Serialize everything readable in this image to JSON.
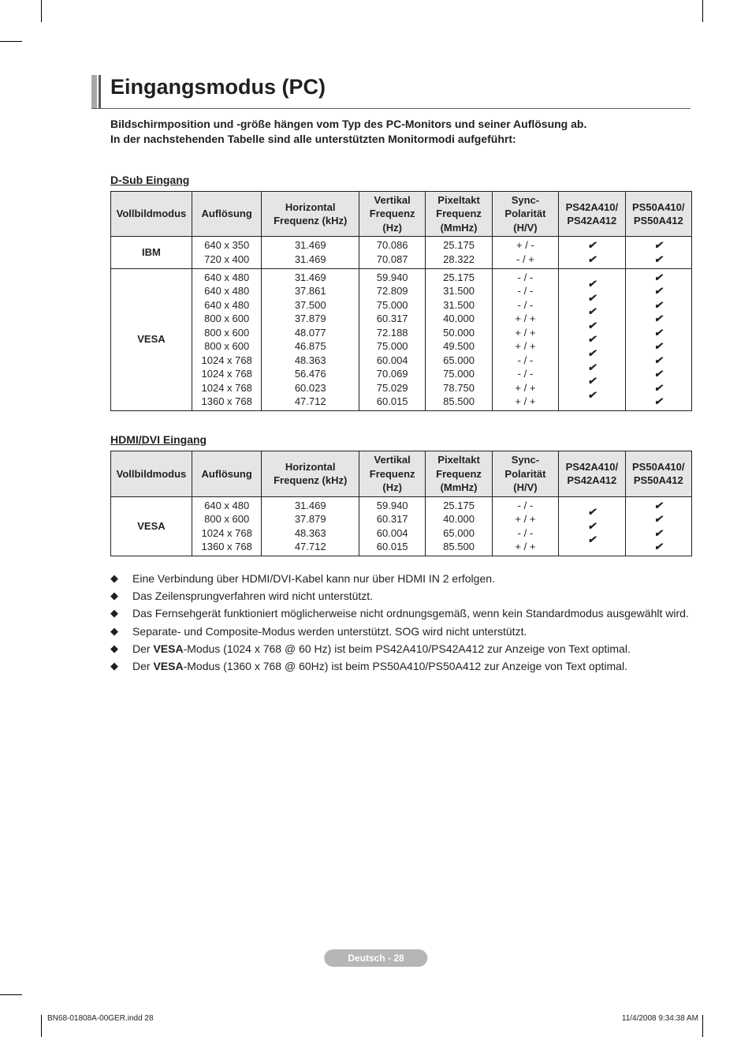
{
  "title": "Eingangsmodus (PC)",
  "intro": {
    "line1": "Bildschirmposition und -größe hängen vom Typ des PC-Monitors und seiner Auflösung ab.",
    "line2": "In der nachstehenden Tabelle sind alle unterstützten Monitormodi aufgeführt:"
  },
  "checkmark": "✔",
  "sections": {
    "dsub": {
      "label": "D-Sub Eingang",
      "headers": {
        "mode": "Vollbildmodus",
        "res": "Auflösung",
        "hf": "Horizontal Frequenz (kHz)",
        "vf": "Vertikal Frequenz (Hz)",
        "pf": "Pixeltakt Frequenz (MmHz)",
        "sp": "Sync-Polarität (H/V)",
        "m1a": "PS42A410/",
        "m1b": "PS42A412",
        "m2a": "PS50A410/",
        "m2b": "PS50A412"
      },
      "groups": [
        {
          "mode": "IBM",
          "rows": [
            {
              "res": "640 x 350",
              "hf": "31.469",
              "vf": "70.086",
              "pf": "25.175",
              "sp": "+ / -",
              "m1": true,
              "m2": true
            },
            {
              "res": "720 x 400",
              "hf": "31.469",
              "vf": "70.087",
              "pf": "28.322",
              "sp": "- / +",
              "m1": true,
              "m2": true
            }
          ]
        },
        {
          "mode": "VESA",
          "rows": [
            {
              "res": "640 x 480",
              "hf": "31.469",
              "vf": "59.940",
              "pf": "25.175",
              "sp": "- / -",
              "m1": true,
              "m2": true
            },
            {
              "res": "640 x 480",
              "hf": "37.861",
              "vf": "72.809",
              "pf": "31.500",
              "sp": "- / -",
              "m1": true,
              "m2": true
            },
            {
              "res": "640 x 480",
              "hf": "37.500",
              "vf": "75.000",
              "pf": "31.500",
              "sp": "- / -",
              "m1": true,
              "m2": true
            },
            {
              "res": "800 x 600",
              "hf": "37.879",
              "vf": "60.317",
              "pf": "40.000",
              "sp": "+ / +",
              "m1": true,
              "m2": true
            },
            {
              "res": "800 x 600",
              "hf": "48.077",
              "vf": "72.188",
              "pf": "50.000",
              "sp": "+ / +",
              "m1": true,
              "m2": true
            },
            {
              "res": "800 x 600",
              "hf": "46.875",
              "vf": "75.000",
              "pf": "49.500",
              "sp": "+ / +",
              "m1": true,
              "m2": true
            },
            {
              "res": "1024 x 768",
              "hf": "48.363",
              "vf": "60.004",
              "pf": "65.000",
              "sp": "- / -",
              "m1": true,
              "m2": true
            },
            {
              "res": "1024 x 768",
              "hf": "56.476",
              "vf": "70.069",
              "pf": "75.000",
              "sp": "- / -",
              "m1": true,
              "m2": true
            },
            {
              "res": "1024 x 768",
              "hf": "60.023",
              "vf": "75.029",
              "pf": "78.750",
              "sp": "+ / +",
              "m1": true,
              "m2": true
            },
            {
              "res": "1360 x 768",
              "hf": "47.712",
              "vf": "60.015",
              "pf": "85.500",
              "sp": "+ / +",
              "m1": false,
              "m2": true
            }
          ]
        }
      ]
    },
    "hdmi": {
      "label": "HDMI/DVI Eingang",
      "headers": {
        "mode": "Vollbildmodus",
        "res": "Auflösung",
        "hf": "Horizontal Frequenz (kHz)",
        "vf": "Vertikal Frequenz (Hz)",
        "pf": "Pixeltakt Frequenz (MmHz)",
        "sp": "Sync-Polarität (H/V)",
        "m1a": "PS42A410/",
        "m1b": "PS42A412",
        "m2a": "PS50A410/",
        "m2b": "PS50A412"
      },
      "groups": [
        {
          "mode": "VESA",
          "rows": [
            {
              "res": "640 x 480",
              "hf": "31.469",
              "vf": "59.940",
              "pf": "25.175",
              "sp": "- / -",
              "m1": true,
              "m2": true
            },
            {
              "res": "800 x 600",
              "hf": "37.879",
              "vf": "60.317",
              "pf": "40.000",
              "sp": "+ / +",
              "m1": true,
              "m2": true
            },
            {
              "res": "1024 x 768",
              "hf": "48.363",
              "vf": "60.004",
              "pf": "65.000",
              "sp": "- / -",
              "m1": true,
              "m2": true
            },
            {
              "res": "1360 x 768",
              "hf": "47.712",
              "vf": "60.015",
              "pf": "85.500",
              "sp": "+ / +",
              "m1": false,
              "m2": true
            }
          ]
        }
      ]
    }
  },
  "bullets": [
    {
      "pre": "",
      "bold": "",
      "post": "Eine Verbindung über HDMI/DVI-Kabel kann nur über HDMI IN 2 erfolgen."
    },
    {
      "pre": "",
      "bold": "",
      "post": "Das Zeilensprungverfahren wird nicht unterstützt."
    },
    {
      "pre": "",
      "bold": "",
      "post": "Das Fernsehgerät funktioniert möglicherweise nicht ordnungsgemäß, wenn kein Standardmodus ausgewählt wird."
    },
    {
      "pre": "",
      "bold": "",
      "post": "Separate- und Composite-Modus werden unterstützt. SOG wird nicht unterstützt."
    },
    {
      "pre": "Der ",
      "bold": "VESA",
      "post": "-Modus (1024 x 768 @ 60 Hz) ist beim PS42A410/PS42A412 zur Anzeige von Text optimal."
    },
    {
      "pre": "Der ",
      "bold": "VESA",
      "post": "-Modus (1360 x 768 @ 60Hz) ist beim PS50A410/PS50A412 zur Anzeige von Text optimal."
    }
  ],
  "footer_pill": "Deutsch - 28",
  "indd": {
    "left": "BN68-01808A-00GER.indd   28",
    "right": "11/4/2008   9:34:38 AM"
  },
  "colors": {
    "text": "#231f20",
    "header_bg": "#e6e5e5",
    "pill_bg": "#b7b6b6",
    "rule_light": "#aaa7a7",
    "rule_dark": "#5a5a5a"
  }
}
